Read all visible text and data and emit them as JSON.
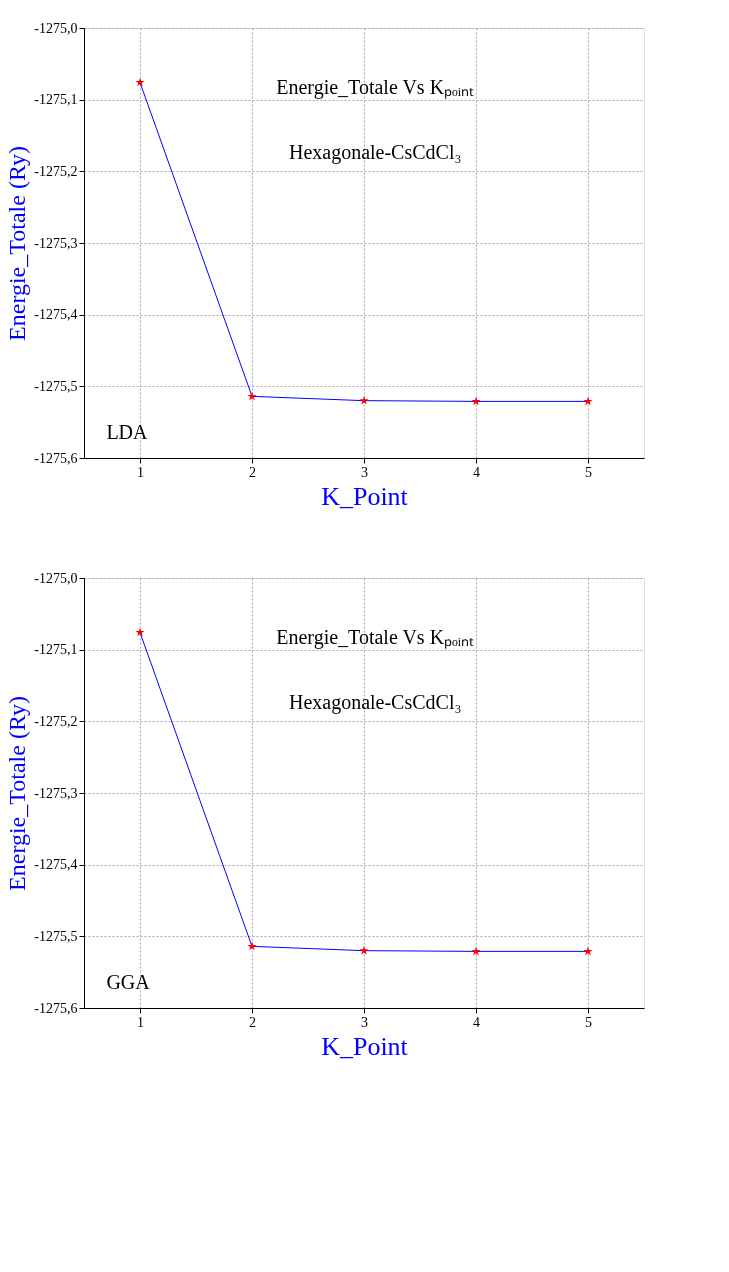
{
  "chart_data": [
    {
      "type": "line",
      "xlabel": "K_Point",
      "ylabel": "Energie_Totale (Ry)",
      "x": [
        1,
        2,
        3,
        4,
        5
      ],
      "series": [
        {
          "color": "#0000ff",
          "colors": [
            "#ff0000",
            "#ff0000",
            "#ff0000",
            "#ff0000",
            "#ff0000"
          ],
          "values": [
            -1275.076,
            -1275.514,
            -1275.52,
            -1275.521,
            -1275.521
          ]
        }
      ],
      "xlim": [
        0.5,
        5.5
      ],
      "xticks": [
        1,
        2,
        3,
        4,
        5
      ],
      "ylim": [
        -1275.6,
        -1275.0
      ],
      "yticks": [
        {
          "value": -1275.6,
          "label": "-1275,6"
        },
        {
          "value": -1275.5,
          "label": "-1275,5"
        },
        {
          "value": -1275.4,
          "label": "-1275,4"
        },
        {
          "value": -1275.3,
          "label": "-1275,3"
        },
        {
          "value": -1275.2,
          "label": "-1275,2"
        },
        {
          "value": -1275.1,
          "label": "-1275,1"
        },
        {
          "value": -1275.0,
          "label": "-1275,0"
        }
      ],
      "annotations": [
        "Energie_Totale Vs Kₚₒᵢₙₜ",
        "Hexagonale-CsCdCl₃",
        "LDA"
      ],
      "grid": true,
      "marker": "star",
      "line_style": "solid"
    },
    {
      "type": "line",
      "xlabel": "K_Point",
      "ylabel": "Energie_Totale (Ry)",
      "x": [
        1,
        2,
        3,
        4,
        5
      ],
      "series": [
        {
          "color": "#0000ff",
          "colors": [
            "#ff0000",
            "#ff0000",
            "#ff0000",
            "#ff0000",
            "#ff0000"
          ],
          "values": [
            -1275.076,
            -1275.514,
            -1275.52,
            -1275.521,
            -1275.521
          ]
        }
      ],
      "xlim": [
        0.5,
        5.5
      ],
      "xticks": [
        1,
        2,
        3,
        4,
        5
      ],
      "ylim": [
        -1275.6,
        -1275.0
      ],
      "yticks": [
        {
          "value": -1275.6,
          "label": "-1275,6"
        },
        {
          "value": -1275.5,
          "label": "-1275,5"
        },
        {
          "value": -1275.4,
          "label": "-1275,4"
        },
        {
          "value": -1275.3,
          "label": "-1275,3"
        },
        {
          "value": -1275.2,
          "label": "-1275,2"
        },
        {
          "value": -1275.1,
          "label": "-1275,1"
        },
        {
          "value": -1275.0,
          "label": "-1275,0"
        }
      ],
      "annotations": [
        "Energie_Totale Vs Kₚₒᵢₙₜ",
        "Hexagonale-CsCdCl₃",
        "GGA"
      ],
      "grid": true,
      "marker": "star",
      "line_style": "solid"
    }
  ]
}
